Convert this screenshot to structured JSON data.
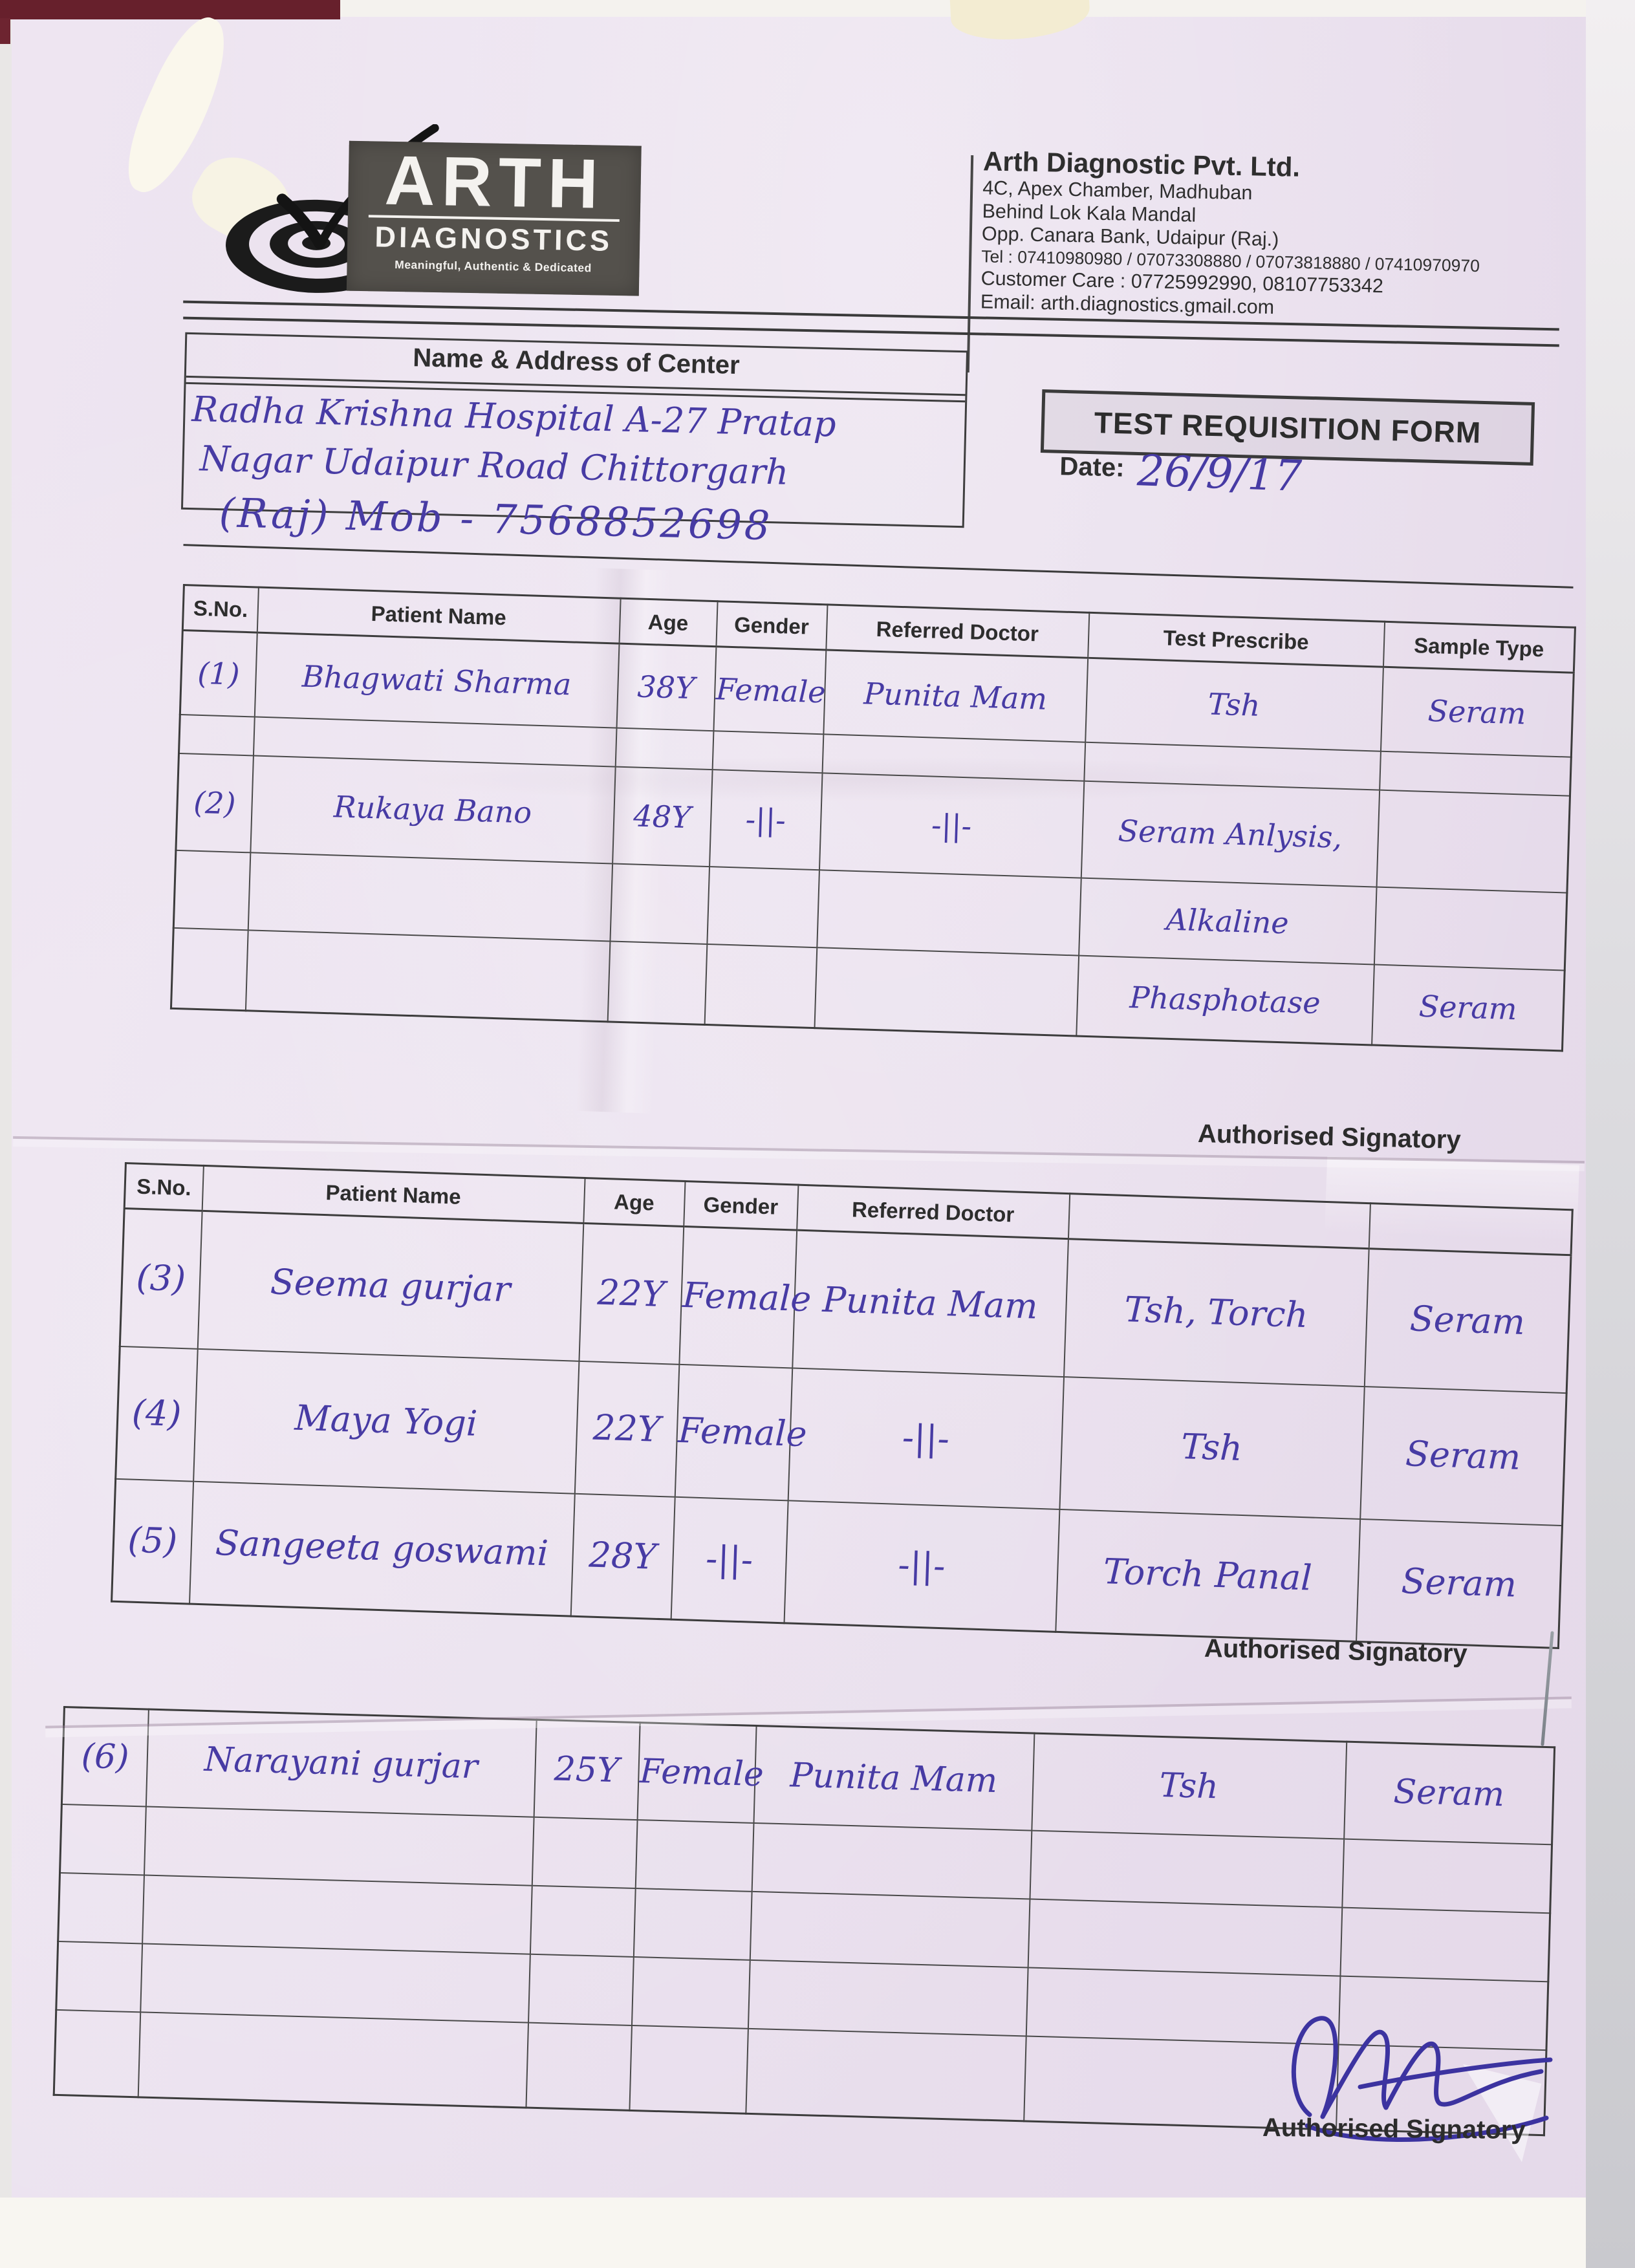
{
  "logo": {
    "name": "ARTH",
    "sub": "DIAGNOSTICS",
    "tagline": "Meaningful, Authentic & Dedicated",
    "icon": "bullseye-target-check-icon"
  },
  "company": {
    "name": "Arth Diagnostic Pvt. Ltd.",
    "address1": "4C, Apex Chamber, Madhuban",
    "address2": "Behind Lok Kala Mandal",
    "address3": "Opp. Canara Bank, Udaipur (Raj.)",
    "tel": "Tel : 07410980980 / 07073308880 / 07073818880 / 07410970970",
    "customer_care": "Customer Care : 07725992990, 08107753342",
    "email": "Email: arth.diagnostics.gmail.com"
  },
  "center_box": {
    "title": "Name & Address of Center",
    "line1": "Radha Krishna Hospital A-27 Pratap",
    "line2": "Nagar Udaipur Road Chittorgarh",
    "line3": "(Raj)  Mob -  7568852698"
  },
  "form": {
    "title": "TEST REQUISITION FORM",
    "date_label": "Date:",
    "date_value": "26/9/17",
    "signatory_label": "Authorised Signatory"
  },
  "table_headers": [
    "S.No.",
    "Patient Name",
    "Age",
    "Gender",
    "Referred Doctor",
    "Test Prescribe",
    "Sample Type"
  ],
  "table2_headers": [
    "S.No.",
    "Patient Name",
    "Age",
    "Gender",
    "Referred Doctor",
    "",
    ""
  ],
  "sheet1_rows": [
    [
      "(1)",
      "Bhagwati Sharma",
      "38Y",
      "Female",
      "Punita Mam",
      "Tsh",
      "Seram"
    ],
    [
      "",
      "",
      "",
      "",
      "",
      "",
      ""
    ],
    [
      "(2)",
      "Rukaya Bano",
      "48Y",
      "-||-",
      "-||-",
      "Seram Anlysis,",
      ""
    ],
    [
      "",
      "",
      "",
      "",
      "",
      "Alkaline",
      ""
    ],
    [
      "",
      "",
      "",
      "",
      "",
      "Phasphotase",
      "Seram"
    ]
  ],
  "sheet2_rows": [
    [
      "(3)",
      "Seema gurjar",
      "22Y",
      "Female",
      "Punita Mam",
      "Tsh, Torch",
      "Seram"
    ],
    [
      "(4)",
      "Maya Yogi",
      "22Y",
      "Female",
      "-||-",
      "Tsh",
      "Seram"
    ],
    [
      "(5)",
      "Sangeeta goswami",
      "28Y",
      "-||-",
      "-||-",
      "Torch Panal",
      "Seram"
    ]
  ],
  "sheet3_rows": [
    [
      "(6)",
      "Narayani gurjar",
      "25Y",
      "Female",
      "Punita Mam",
      "Tsh",
      "Seram"
    ],
    [
      "",
      "",
      "",
      "",
      "",
      "",
      ""
    ],
    [
      "",
      "",
      "",
      "",
      "",
      "",
      ""
    ],
    [
      "",
      "",
      "",
      "",
      "",
      "",
      ""
    ],
    [
      "",
      "",
      "",
      "",
      "",
      "",
      ""
    ]
  ]
}
